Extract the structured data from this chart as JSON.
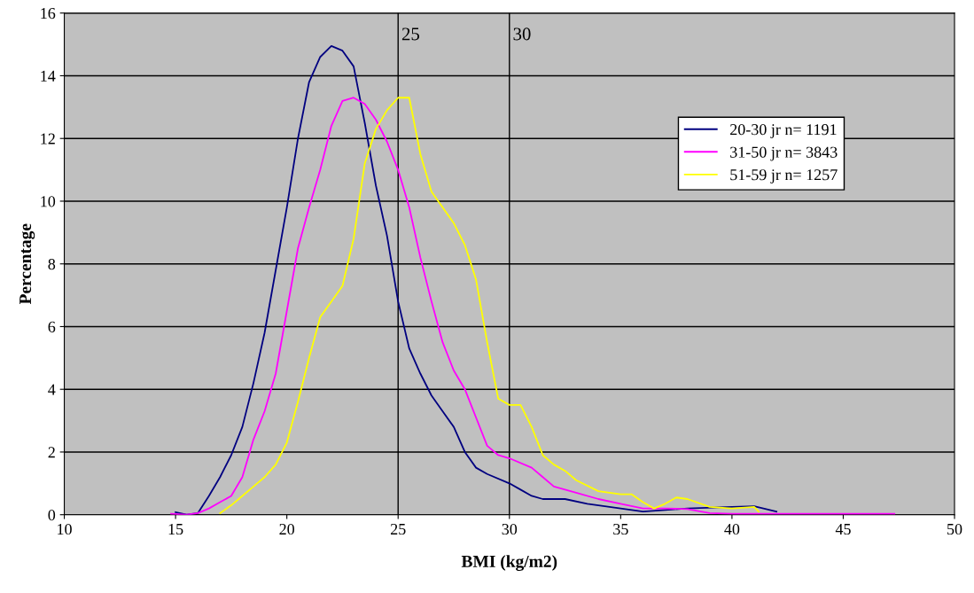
{
  "chart_data": {
    "type": "line",
    "xlabel": "BMI (kg/m2)",
    "ylabel": "Percentage",
    "xlim": [
      10,
      50
    ],
    "xticks": [
      10,
      15,
      20,
      25,
      30,
      35,
      40,
      45,
      50
    ],
    "ylim": [
      0,
      16
    ],
    "yticks": [
      0,
      2,
      4,
      6,
      8,
      10,
      12,
      14,
      16
    ],
    "grid": "y",
    "legend": "right",
    "marker": "none",
    "line_style": "solid",
    "ref_lines": [
      {
        "axis": "x",
        "value": 25,
        "label": "25",
        "color": "#000000"
      },
      {
        "axis": "x",
        "value": 30,
        "label": "30",
        "color": "#000000"
      }
    ],
    "series": [
      {
        "name": "20-30 jr n= 1191",
        "color": "#000080",
        "x": [
          15.0,
          15.5,
          16,
          16.5,
          17,
          17.5,
          18,
          18.5,
          19,
          19.5,
          20,
          20.5,
          21,
          21.5,
          22,
          22.5,
          23,
          23.5,
          24,
          24.5,
          25,
          25.5,
          26,
          26.5,
          27,
          27.5,
          28,
          28.5,
          29,
          30,
          30.5,
          31,
          31.5,
          32.5,
          33.5,
          34,
          35,
          36,
          37,
          38,
          40,
          41,
          42
        ],
        "values": [
          0.08,
          0.0,
          0.05,
          0.6,
          1.2,
          1.9,
          2.8,
          4.2,
          5.8,
          7.8,
          9.8,
          12,
          13.8,
          14.6,
          14.95,
          14.8,
          14.3,
          12.5,
          10.5,
          8.9,
          6.8,
          5.3,
          4.5,
          3.8,
          3.3,
          2.8,
          2.0,
          1.5,
          1.3,
          1.0,
          0.8,
          0.6,
          0.5,
          0.5,
          0.35,
          0.3,
          0.2,
          0.1,
          0.15,
          0.2,
          0.25,
          0.27,
          0.1
        ]
      },
      {
        "name": "31-50 jr n= 3843",
        "color": "#ff00ff",
        "x": [
          14.8,
          15.5,
          16,
          16.5,
          17,
          17.5,
          18,
          18.5,
          19,
          19.5,
          20,
          20.5,
          21,
          21.5,
          22,
          22.5,
          23,
          23.5,
          24,
          24.5,
          25,
          25.5,
          26,
          26.5,
          27,
          27.5,
          28,
          28.5,
          29,
          29.5,
          30,
          31,
          31.5,
          32,
          33,
          34,
          35,
          36,
          37,
          38,
          39,
          40,
          47.3
        ],
        "values": [
          0.03,
          0.0,
          0.05,
          0.2,
          0.4,
          0.6,
          1.2,
          2.4,
          3.3,
          4.5,
          6.5,
          8.5,
          9.8,
          11,
          12.4,
          13.2,
          13.3,
          13.1,
          12.6,
          11.9,
          11.0,
          9.8,
          8.2,
          6.8,
          5.5,
          4.6,
          4.0,
          3.1,
          2.2,
          1.9,
          1.8,
          1.5,
          1.2,
          0.9,
          0.7,
          0.5,
          0.35,
          0.2,
          0.2,
          0.18,
          0.05,
          0.03,
          0.03
        ]
      },
      {
        "name": "51-59 jr n= 1257",
        "color": "#ffff00",
        "x": [
          17,
          17.5,
          18,
          18.5,
          19,
          19.5,
          20,
          20.5,
          21,
          21.5,
          22,
          22.5,
          23,
          23.5,
          24,
          24.5,
          25,
          25.5,
          26,
          26.5,
          27,
          27.5,
          28,
          28.5,
          29,
          29.5,
          30,
          30.5,
          31,
          31.5,
          32,
          32.5,
          33,
          34,
          35,
          35.5,
          36,
          36.5,
          37,
          37.5,
          38,
          39,
          40,
          41,
          41.2
        ],
        "values": [
          0.05,
          0.3,
          0.6,
          0.9,
          1.2,
          1.6,
          2.3,
          3.6,
          5.0,
          6.3,
          6.8,
          7.3,
          8.8,
          11.2,
          12.3,
          12.9,
          13.3,
          13.3,
          11.5,
          10.3,
          9.8,
          9.3,
          8.6,
          7.5,
          5.5,
          3.7,
          3.5,
          3.5,
          2.8,
          1.9,
          1.6,
          1.4,
          1.1,
          0.75,
          0.65,
          0.65,
          0.4,
          0.2,
          0.35,
          0.55,
          0.5,
          0.25,
          0.2,
          0.25,
          0.1
        ]
      }
    ]
  }
}
